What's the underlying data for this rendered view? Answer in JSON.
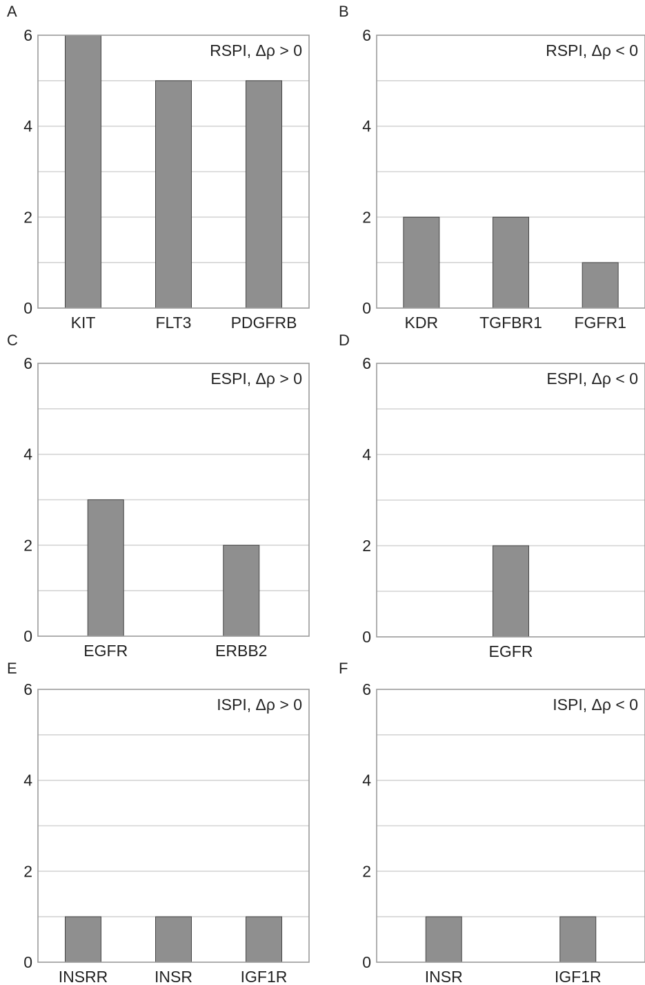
{
  "chart_data": [
    {
      "panel": "A",
      "type": "bar",
      "title": "RSPI, Δρ > 0",
      "categories": [
        "KIT",
        "FLT3",
        "PDGFRB"
      ],
      "values": [
        6,
        5,
        5
      ],
      "ylim": [
        0,
        6
      ],
      "yticks": [
        "0",
        "2",
        "4",
        "6"
      ],
      "grid": true,
      "bar_color": "#8f8f8f",
      "title_placement": "top-right"
    },
    {
      "panel": "B",
      "type": "bar",
      "title": "RSPI, Δρ < 0",
      "categories": [
        "KDR",
        "TGFBR1",
        "FGFR1"
      ],
      "values": [
        2,
        2,
        1
      ],
      "ylim": [
        0,
        6
      ],
      "yticks": [
        "0",
        "2",
        "4",
        "6"
      ],
      "grid": true,
      "bar_color": "#8f8f8f",
      "title_placement": "top-right"
    },
    {
      "panel": "C",
      "type": "bar",
      "title": "ESPI, Δρ > 0",
      "categories": [
        "EGFR",
        "ERBB2"
      ],
      "values": [
        3,
        2
      ],
      "ylim": [
        0,
        6
      ],
      "yticks": [
        "0",
        "2",
        "4",
        "6"
      ],
      "grid": true,
      "bar_color": "#8f8f8f",
      "title_placement": "top-right"
    },
    {
      "panel": "D",
      "type": "bar",
      "title": "ESPI, Δρ < 0",
      "categories": [
        "EGFR"
      ],
      "values": [
        2
      ],
      "ylim": [
        0,
        6
      ],
      "yticks": [
        "0",
        "2",
        "4",
        "6"
      ],
      "grid": true,
      "bar_color": "#8f8f8f",
      "title_placement": "top-right"
    },
    {
      "panel": "E",
      "type": "bar",
      "title": "ISPI, Δρ > 0",
      "categories": [
        "INSRR",
        "INSR",
        "IGF1R"
      ],
      "values": [
        1,
        1,
        1
      ],
      "ylim": [
        0,
        6
      ],
      "yticks": [
        "0",
        "2",
        "4",
        "6"
      ],
      "grid": true,
      "bar_color": "#8f8f8f",
      "title_placement": "top-right"
    },
    {
      "panel": "F",
      "type": "bar",
      "title": "ISPI, Δρ < 0",
      "categories": [
        "INSR",
        "IGF1R"
      ],
      "values": [
        1,
        1
      ],
      "ylim": [
        0,
        6
      ],
      "yticks": [
        "0",
        "2",
        "4",
        "6"
      ],
      "grid": true,
      "bar_color": "#8f8f8f",
      "title_placement": "top-right"
    }
  ]
}
